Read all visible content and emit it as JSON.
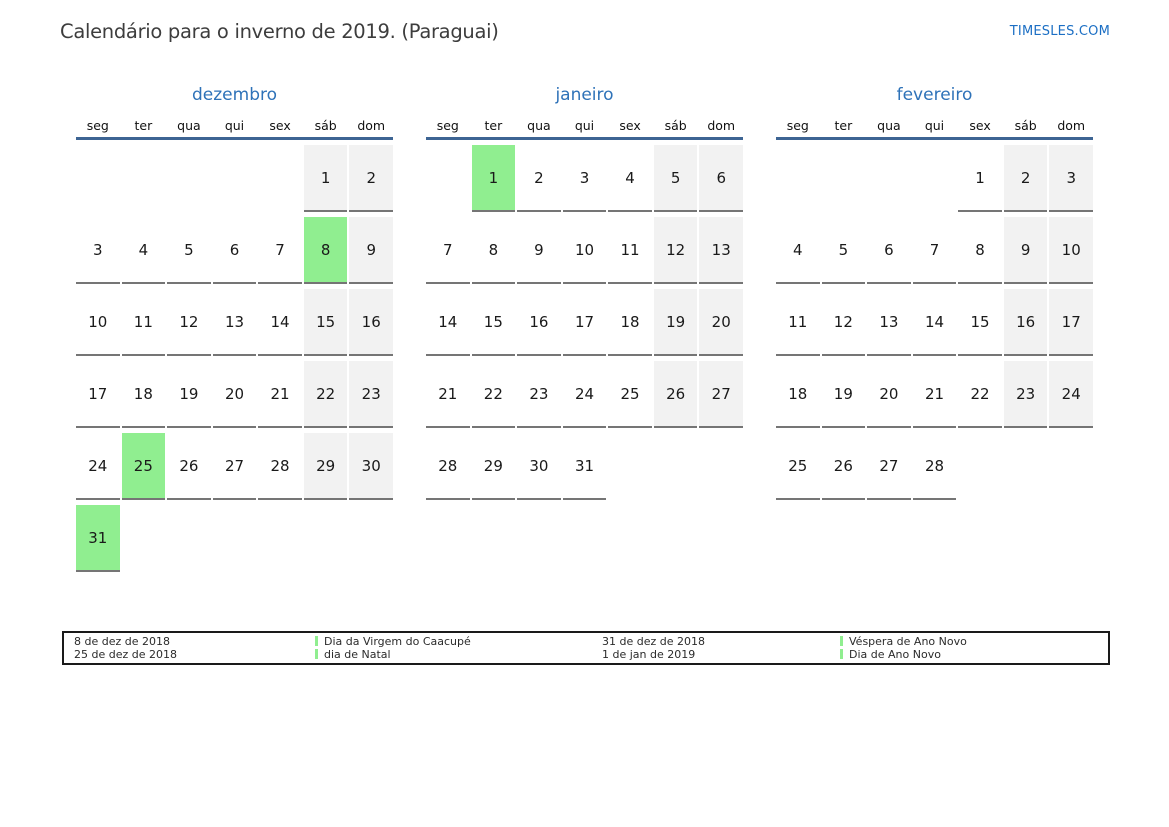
{
  "page": {
    "title": "Calendário para o inverno de 2019. (Paraguai)",
    "site_link": "TIMESLES.COM"
  },
  "colors": {
    "holiday_green": "#90ee90",
    "weekend_gray": "#f2f2f2",
    "line_blue": "#3d6493",
    "month_blue": "#2e72b8",
    "link_blue": "#1c6fc4",
    "border_gray": "#757575"
  },
  "weekday_headers": [
    "seg",
    "ter",
    "qua",
    "qui",
    "sex",
    "sáb",
    "dom"
  ],
  "months": [
    {
      "name": "dezembro",
      "weeks": [
        [
          null,
          null,
          null,
          null,
          null,
          1,
          2
        ],
        [
          3,
          4,
          5,
          6,
          7,
          8,
          9
        ],
        [
          10,
          11,
          12,
          13,
          14,
          15,
          16
        ],
        [
          17,
          18,
          19,
          20,
          21,
          22,
          23
        ],
        [
          24,
          25,
          26,
          27,
          28,
          29,
          30
        ],
        [
          31,
          null,
          null,
          null,
          null,
          null,
          null
        ]
      ],
      "highlighted_days": [
        8,
        25,
        31
      ]
    },
    {
      "name": "janeiro",
      "weeks": [
        [
          null,
          1,
          2,
          3,
          4,
          5,
          6
        ],
        [
          7,
          8,
          9,
          10,
          11,
          12,
          13
        ],
        [
          14,
          15,
          16,
          17,
          18,
          19,
          20
        ],
        [
          21,
          22,
          23,
          24,
          25,
          26,
          27
        ],
        [
          28,
          29,
          30,
          31,
          null,
          null,
          null
        ]
      ],
      "highlighted_days": [
        1
      ]
    },
    {
      "name": "fevereiro",
      "weeks": [
        [
          null,
          null,
          null,
          null,
          1,
          2,
          3
        ],
        [
          4,
          5,
          6,
          7,
          8,
          9,
          10
        ],
        [
          11,
          12,
          13,
          14,
          15,
          16,
          17
        ],
        [
          18,
          19,
          20,
          21,
          22,
          23,
          24
        ],
        [
          25,
          26,
          27,
          28,
          null,
          null,
          null
        ]
      ],
      "highlighted_days": []
    }
  ],
  "legend": {
    "groups": [
      {
        "dates": [
          "8 de dez de 2018",
          "25 de dez de 2018"
        ],
        "holidays": [
          "Dia da Virgem do Caacupé",
          "dia de Natal"
        ]
      },
      {
        "dates": [
          "31 de dez de 2018",
          "1 de jan de 2019"
        ],
        "holidays": [
          "Véspera de Ano Novo",
          "Dia de Ano Novo"
        ]
      }
    ]
  }
}
